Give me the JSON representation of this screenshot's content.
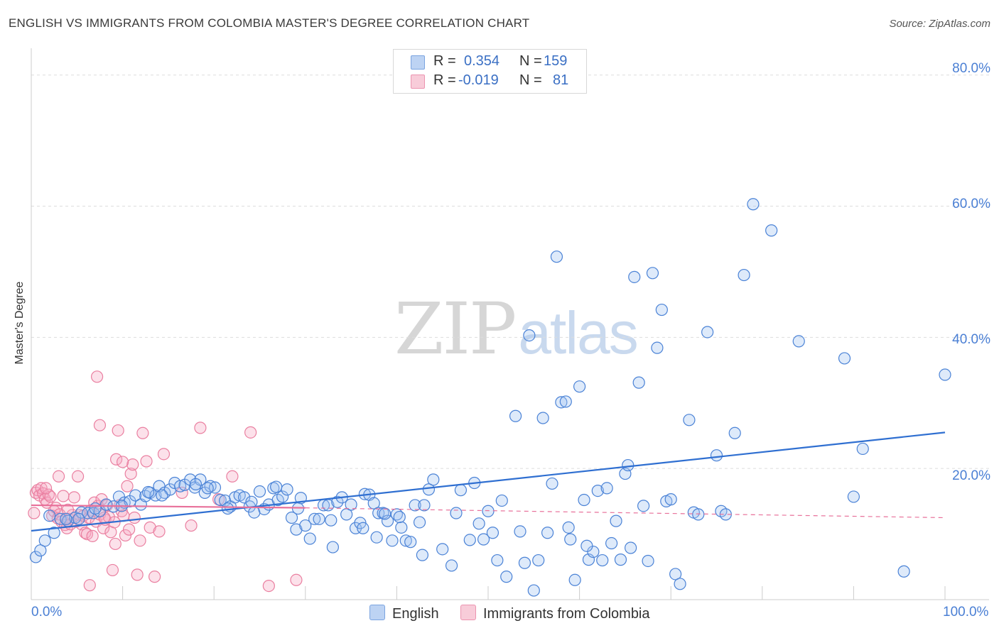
{
  "title": "ENGLISH VS IMMIGRANTS FROM COLOMBIA MASTER'S DEGREE CORRELATION CHART",
  "source": "Source: ZipAtlas.com",
  "watermark": {
    "zip": "ZIP",
    "atlas": "atlas"
  },
  "legend": {
    "rows": [
      {
        "r_label": "R =",
        "r_value": "0.354",
        "n_label": "N =",
        "n_value": "159",
        "color": "#a9c6f0"
      },
      {
        "r_label": "R =",
        "r_value": "-0.019",
        "n_label": "N =",
        "n_value": "81",
        "color": "#f5b6c8"
      }
    ]
  },
  "bottom_legend": [
    {
      "label": "English",
      "color": "#a9c6f0"
    },
    {
      "label": "Immigrants from Colombia",
      "color": "#f5b6c8"
    }
  ],
  "axis": {
    "y_label": "Master's Degree",
    "y_ticks": [
      "80.0%",
      "60.0%",
      "40.0%",
      "20.0%"
    ],
    "x_ticks": [
      "0.0%",
      "100.0%"
    ]
  },
  "chart_data": {
    "type": "scatter",
    "title": "ENGLISH VS IMMIGRANTS FROM COLOMBIA MASTER'S DEGREE CORRELATION CHART",
    "xlabel": "",
    "ylabel": "Master's Degree",
    "xlim": [
      0,
      100
    ],
    "ylim": [
      0,
      83
    ],
    "colors": {
      "english": "#4a82d6",
      "colombia": "#ea7fa0",
      "english_line": "#2f6fd1",
      "colombia_line": "#e8709a"
    },
    "series": [
      {
        "name": "English",
        "r": 0.354,
        "n": 159,
        "trend": {
          "x": [
            0,
            100
          ],
          "y": [
            10.5,
            25.5
          ],
          "style": "solid"
        },
        "points": [
          [
            0.5,
            6.5
          ],
          [
            1.0,
            7.5
          ],
          [
            1.5,
            9.0
          ],
          [
            2.5,
            10.2
          ],
          [
            2.0,
            12.8
          ],
          [
            3.2,
            12.3
          ],
          [
            4.0,
            12.0
          ],
          [
            4.8,
            12.5
          ],
          [
            5.5,
            13.3
          ],
          [
            6.2,
            13.2
          ],
          [
            6.8,
            13.2
          ],
          [
            7.5,
            13.5
          ],
          [
            8.2,
            14.5
          ],
          [
            9.0,
            14.2
          ],
          [
            9.6,
            15.7
          ],
          [
            10.2,
            14.8
          ],
          [
            10.8,
            15.0
          ],
          [
            11.4,
            15.9
          ],
          [
            12.0,
            14.5
          ],
          [
            12.5,
            15.8
          ],
          [
            13.0,
            16.3
          ],
          [
            13.6,
            15.9
          ],
          [
            14.0,
            17.3
          ],
          [
            14.6,
            16.3
          ],
          [
            15.2,
            16.8
          ],
          [
            15.7,
            17.8
          ],
          [
            16.3,
            17.3
          ],
          [
            16.8,
            17.5
          ],
          [
            17.4,
            18.3
          ],
          [
            17.9,
            17.1
          ],
          [
            18.5,
            18.3
          ],
          [
            19.0,
            16.3
          ],
          [
            19.6,
            17.3
          ],
          [
            20.1,
            17.1
          ],
          [
            20.7,
            15.2
          ],
          [
            21.2,
            15.1
          ],
          [
            21.8,
            14.2
          ],
          [
            22.3,
            15.6
          ],
          [
            22.8,
            15.9
          ],
          [
            23.3,
            15.6
          ],
          [
            23.9,
            14.2
          ],
          [
            24.4,
            13.3
          ],
          [
            25.0,
            16.5
          ],
          [
            25.5,
            13.8
          ],
          [
            26.0,
            14.5
          ],
          [
            26.5,
            17.0
          ],
          [
            27.0,
            15.2
          ],
          [
            27.5,
            15.7
          ],
          [
            28.0,
            16.8
          ],
          [
            28.5,
            12.5
          ],
          [
            29.0,
            10.7
          ],
          [
            29.5,
            15.5
          ],
          [
            30.0,
            11.3
          ],
          [
            30.5,
            9.3
          ],
          [
            31.0,
            12.3
          ],
          [
            31.5,
            12.3
          ],
          [
            32.0,
            14.4
          ],
          [
            32.5,
            14.4
          ],
          [
            33.0,
            8.0
          ],
          [
            33.5,
            14.9
          ],
          [
            34.0,
            15.6
          ],
          [
            34.5,
            13.0
          ],
          [
            35.0,
            14.5
          ],
          [
            35.5,
            10.9
          ],
          [
            36.0,
            11.7
          ],
          [
            36.5,
            16.1
          ],
          [
            37.0,
            16.0
          ],
          [
            37.5,
            14.7
          ],
          [
            38.0,
            13.2
          ],
          [
            38.5,
            13.2
          ],
          [
            39.0,
            12.0
          ],
          [
            39.5,
            9.0
          ],
          [
            40.0,
            13.0
          ],
          [
            40.5,
            11.0
          ],
          [
            41.0,
            9.0
          ],
          [
            41.5,
            8.8
          ],
          [
            42.0,
            14.4
          ],
          [
            42.5,
            11.8
          ],
          [
            43.0,
            14.4
          ],
          [
            43.5,
            16.8
          ],
          [
            44.0,
            18.3
          ],
          [
            45.0,
            7.7
          ],
          [
            46.0,
            5.2
          ],
          [
            47.0,
            16.7
          ],
          [
            48.0,
            9.1
          ],
          [
            48.5,
            17.8
          ],
          [
            49.0,
            11.6
          ],
          [
            49.5,
            9.2
          ],
          [
            50.0,
            13.5
          ],
          [
            50.5,
            10.2
          ],
          [
            51.0,
            6.0
          ],
          [
            51.5,
            15.1
          ],
          [
            52.0,
            3.5
          ],
          [
            53.0,
            28.0
          ],
          [
            53.5,
            10.4
          ],
          [
            54.0,
            5.6
          ],
          [
            54.5,
            40.3
          ],
          [
            55.0,
            1.4
          ],
          [
            55.5,
            6.0
          ],
          [
            56.0,
            27.7
          ],
          [
            56.5,
            10.2
          ],
          [
            57.0,
            17.7
          ],
          [
            57.5,
            52.3
          ],
          [
            58.0,
            30.1
          ],
          [
            58.5,
            30.2
          ],
          [
            59.0,
            9.2
          ],
          [
            59.5,
            3.0
          ],
          [
            60.0,
            32.5
          ],
          [
            60.5,
            15.2
          ],
          [
            61.0,
            6.1
          ],
          [
            61.5,
            7.3
          ],
          [
            62.0,
            16.6
          ],
          [
            62.5,
            6.0
          ],
          [
            63.0,
            17.0
          ],
          [
            63.5,
            8.6
          ],
          [
            64.0,
            12.0
          ],
          [
            64.5,
            6.1
          ],
          [
            65.0,
            19.2
          ],
          [
            65.3,
            20.5
          ],
          [
            65.6,
            7.9
          ],
          [
            66.0,
            49.2
          ],
          [
            66.5,
            33.1
          ],
          [
            67.0,
            14.3
          ],
          [
            67.5,
            5.9
          ],
          [
            68.0,
            49.8
          ],
          [
            68.5,
            38.4
          ],
          [
            69.0,
            44.2
          ],
          [
            69.5,
            15.0
          ],
          [
            70.0,
            15.3
          ],
          [
            70.5,
            3.9
          ],
          [
            71.0,
            2.4
          ],
          [
            72.0,
            27.4
          ],
          [
            72.5,
            13.3
          ],
          [
            73.0,
            13.0
          ],
          [
            74.0,
            40.8
          ],
          [
            75.0,
            22.0
          ],
          [
            75.5,
            13.5
          ],
          [
            76.0,
            13.0
          ],
          [
            77.0,
            25.4
          ],
          [
            78.0,
            49.5
          ],
          [
            79.0,
            60.3
          ],
          [
            81.0,
            56.3
          ],
          [
            84.0,
            39.4
          ],
          [
            89.0,
            36.8
          ],
          [
            90.0,
            15.7
          ],
          [
            91.0,
            23.0
          ],
          [
            95.5,
            4.3
          ],
          [
            100.0,
            34.3
          ],
          [
            29.2,
            13.9
          ],
          [
            37.8,
            9.5
          ],
          [
            42.8,
            6.8
          ],
          [
            5.2,
            12.3
          ],
          [
            18.0,
            17.6
          ],
          [
            12.8,
            16.4
          ],
          [
            26.8,
            17.2
          ],
          [
            9.9,
            14.3
          ],
          [
            38.7,
            13.1
          ],
          [
            46.5,
            13.2
          ],
          [
            58.8,
            11.0
          ],
          [
            60.8,
            8.2
          ],
          [
            3.8,
            12.3
          ],
          [
            7.0,
            13.9
          ],
          [
            14.3,
            15.9
          ],
          [
            19.3,
            17.0
          ],
          [
            21.5,
            13.9
          ],
          [
            24.1,
            14.9
          ],
          [
            32.8,
            12.1
          ],
          [
            36.3,
            10.9
          ],
          [
            40.3,
            12.6
          ]
        ]
      },
      {
        "name": "Immigrants from Colombia",
        "r": -0.019,
        "n": 81,
        "trend": {
          "x": [
            0,
            30,
            100
          ],
          "y": [
            14.4,
            14.0,
            12.5
          ],
          "style": "solid-then-dashed"
        },
        "points": [
          [
            0.3,
            13.2
          ],
          [
            0.5,
            16.3
          ],
          [
            0.7,
            16.7
          ],
          [
            0.9,
            15.9
          ],
          [
            1.1,
            17.0
          ],
          [
            1.3,
            16.2
          ],
          [
            1.5,
            15.3
          ],
          [
            1.7,
            14.8
          ],
          [
            1.9,
            16.0
          ],
          [
            2.1,
            15.7
          ],
          [
            2.3,
            12.8
          ],
          [
            2.5,
            13.5
          ],
          [
            2.7,
            14.0
          ],
          [
            2.9,
            12.4
          ],
          [
            3.1,
            13.0
          ],
          [
            3.3,
            11.9
          ],
          [
            3.5,
            15.8
          ],
          [
            3.7,
            11.4
          ],
          [
            3.9,
            10.9
          ],
          [
            4.1,
            12.3
          ],
          [
            4.3,
            11.5
          ],
          [
            4.5,
            12.9
          ],
          [
            4.7,
            15.6
          ],
          [
            4.9,
            11.9
          ],
          [
            5.1,
            18.8
          ],
          [
            5.3,
            12.9
          ],
          [
            5.5,
            11.5
          ],
          [
            5.7,
            12.8
          ],
          [
            5.9,
            10.2
          ],
          [
            6.1,
            10.0
          ],
          [
            6.3,
            12.5
          ],
          [
            6.5,
            13.6
          ],
          [
            6.7,
            9.7
          ],
          [
            6.9,
            14.8
          ],
          [
            7.1,
            11.9
          ],
          [
            7.3,
            14.3
          ],
          [
            7.5,
            13.0
          ],
          [
            7.7,
            15.3
          ],
          [
            7.9,
            10.9
          ],
          [
            8.1,
            12.2
          ],
          [
            8.3,
            14.4
          ],
          [
            8.5,
            12.6
          ],
          [
            8.7,
            10.3
          ],
          [
            8.9,
            4.5
          ],
          [
            9.1,
            11.8
          ],
          [
            9.3,
            21.4
          ],
          [
            9.5,
            25.8
          ],
          [
            9.7,
            14.4
          ],
          [
            9.9,
            13.5
          ],
          [
            10.1,
            12.8
          ],
          [
            10.3,
            9.8
          ],
          [
            10.5,
            17.3
          ],
          [
            10.7,
            10.7
          ],
          [
            10.9,
            19.2
          ],
          [
            11.1,
            20.6
          ],
          [
            11.3,
            12.5
          ],
          [
            11.6,
            3.8
          ],
          [
            11.9,
            9.0
          ],
          [
            12.2,
            25.4
          ],
          [
            12.6,
            21.1
          ],
          [
            13.0,
            11.0
          ],
          [
            13.5,
            3.5
          ],
          [
            14.0,
            10.4
          ],
          [
            14.5,
            22.2
          ],
          [
            16.5,
            16.3
          ],
          [
            17.5,
            11.3
          ],
          [
            18.5,
            26.2
          ],
          [
            20.5,
            15.3
          ],
          [
            22.0,
            18.8
          ],
          [
            24.0,
            25.5
          ],
          [
            26.0,
            2.1
          ],
          [
            29.0,
            3.0
          ],
          [
            7.2,
            34.0
          ],
          [
            7.5,
            26.6
          ],
          [
            8.0,
            12.5
          ],
          [
            6.4,
            2.2
          ],
          [
            9.2,
            8.5
          ],
          [
            10.0,
            21.0
          ],
          [
            3.0,
            18.8
          ],
          [
            1.6,
            17.0
          ],
          [
            4.0,
            13.7
          ]
        ]
      }
    ]
  }
}
